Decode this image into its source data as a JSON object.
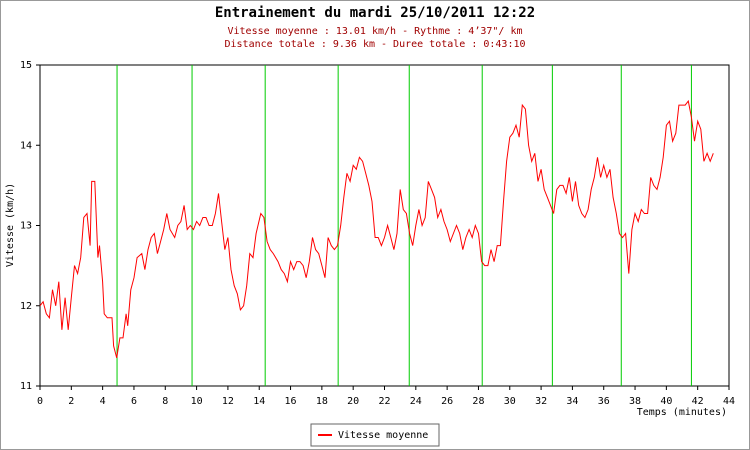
{
  "chart_data": {
    "type": "line",
    "title": "Entrainement du mardi 25/10/2011 12:22",
    "subtitle": [
      "Vitesse moyenne : 13.01 km/h - Rythme : 4’37\"/ km",
      "Distance totale : 9.36 km - Duree totale : 0:43:10"
    ],
    "ylabel": "Vitesse (km/h)",
    "xlabel": "Temps (minutes)",
    "xlim": [
      0,
      44
    ],
    "xticks": [
      0,
      2,
      4,
      6,
      8,
      10,
      12,
      14,
      16,
      18,
      20,
      22,
      24,
      26,
      28,
      30,
      32,
      34,
      36,
      38,
      40,
      42,
      44
    ],
    "ylim": [
      11,
      15
    ],
    "yticks": [
      11,
      12,
      13,
      14,
      15
    ],
    "markers": {
      "color": "#00cc00",
      "x": [
        4.92,
        9.71,
        14.38,
        19.04,
        23.58,
        28.24,
        32.72,
        37.12,
        41.6
      ]
    },
    "x": [
      0,
      0.2,
      0.4,
      0.6,
      0.8,
      1,
      1.2,
      1.4,
      1.6,
      1.8,
      2,
      2.2,
      2.4,
      2.6,
      2.8,
      3,
      3.2,
      3.3,
      3.5,
      3.7,
      3.8,
      4,
      4.1,
      4.3,
      4.6,
      4.7,
      4.9,
      5.1,
      5.3,
      5.5,
      5.6,
      5.8,
      6,
      6.2,
      6.5,
      6.7,
      6.9,
      7.1,
      7.3,
      7.5,
      7.7,
      7.9,
      8.1,
      8.3,
      8.6,
      8.8,
      9,
      9.2,
      9.4,
      9.6,
      9.8,
      10,
      10.2,
      10.4,
      10.6,
      10.8,
      11,
      11.2,
      11.4,
      11.6,
      11.8,
      12,
      12.2,
      12.4,
      12.6,
      12.8,
      13,
      13.2,
      13.4,
      13.6,
      13.8,
      14.1,
      14.3,
      14.5,
      14.7,
      14.9,
      15.2,
      15.4,
      15.6,
      15.8,
      16,
      16.2,
      16.4,
      16.6,
      16.8,
      17,
      17.2,
      17.4,
      17.6,
      17.8,
      18,
      18.2,
      18.4,
      18.6,
      18.8,
      19,
      19.2,
      19.4,
      19.6,
      19.8,
      20,
      20.2,
      20.4,
      20.6,
      20.8,
      21,
      21.2,
      21.4,
      21.6,
      21.8,
      22,
      22.2,
      22.4,
      22.6,
      22.8,
      23,
      23.2,
      23.4,
      23.6,
      23.8,
      24,
      24.2,
      24.4,
      24.6,
      24.8,
      25,
      25.2,
      25.4,
      25.6,
      25.8,
      26,
      26.2,
      26.4,
      26.6,
      26.8,
      27,
      27.2,
      27.4,
      27.6,
      27.8,
      28,
      28.2,
      28.4,
      28.6,
      28.8,
      29,
      29.2,
      29.4,
      29.6,
      29.8,
      30,
      30.2,
      30.4,
      30.6,
      30.8,
      31,
      31.2,
      31.4,
      31.6,
      31.8,
      32,
      32.2,
      32.4,
      32.6,
      32.8,
      33,
      33.2,
      33.4,
      33.6,
      33.8,
      34,
      34.2,
      34.4,
      34.6,
      34.8,
      35,
      35.2,
      35.4,
      35.6,
      35.8,
      36,
      36.2,
      36.4,
      36.6,
      36.8,
      37,
      37.2,
      37.4,
      37.6,
      37.8,
      38,
      38.2,
      38.4,
      38.6,
      38.8,
      39,
      39.2,
      39.4,
      39.6,
      39.8,
      40,
      40.2,
      40.4,
      40.6,
      40.8,
      41,
      41.2,
      41.4,
      41.6,
      41.8,
      42,
      42.2,
      42.4,
      42.6,
      42.8,
      43
    ],
    "series": [
      {
        "name": "Vitesse moyenne",
        "color": "#ff0000",
        "values": [
          12.0,
          12.05,
          11.9,
          11.85,
          12.2,
          12.0,
          12.3,
          11.7,
          12.1,
          11.7,
          12.1,
          12.5,
          12.4,
          12.6,
          13.1,
          13.15,
          12.75,
          13.55,
          13.55,
          12.6,
          12.75,
          12.3,
          11.9,
          11.85,
          11.85,
          11.5,
          11.35,
          11.6,
          11.6,
          11.9,
          11.75,
          12.2,
          12.35,
          12.6,
          12.65,
          12.45,
          12.7,
          12.85,
          12.9,
          12.65,
          12.8,
          12.95,
          13.15,
          12.95,
          12.85,
          13.0,
          13.05,
          13.25,
          12.95,
          13.0,
          12.95,
          13.05,
          13.0,
          13.1,
          13.1,
          13.0,
          13.0,
          13.15,
          13.4,
          13.05,
          12.7,
          12.85,
          12.45,
          12.25,
          12.15,
          11.95,
          12.0,
          12.25,
          12.65,
          12.6,
          12.9,
          13.15,
          13.1,
          12.8,
          12.7,
          12.65,
          12.55,
          12.45,
          12.4,
          12.3,
          12.55,
          12.45,
          12.55,
          12.55,
          12.5,
          12.35,
          12.55,
          12.85,
          12.7,
          12.65,
          12.5,
          12.35,
          12.85,
          12.75,
          12.7,
          12.75,
          13.0,
          13.35,
          13.65,
          13.55,
          13.75,
          13.7,
          13.85,
          13.8,
          13.65,
          13.5,
          13.3,
          12.85,
          12.85,
          12.75,
          12.85,
          13.0,
          12.85,
          12.7,
          12.9,
          13.45,
          13.2,
          13.15,
          12.9,
          12.75,
          13.0,
          13.2,
          13.0,
          13.1,
          13.55,
          13.45,
          13.35,
          13.1,
          13.2,
          13.05,
          12.95,
          12.8,
          12.9,
          13.0,
          12.9,
          12.7,
          12.85,
          12.95,
          12.85,
          13.0,
          12.9,
          12.55,
          12.5,
          12.5,
          12.7,
          12.55,
          12.75,
          12.75,
          13.3,
          13.8,
          14.1,
          14.15,
          14.25,
          14.1,
          14.5,
          14.45,
          14.0,
          13.8,
          13.9,
          13.55,
          13.7,
          13.45,
          13.35,
          13.25,
          13.15,
          13.45,
          13.5,
          13.5,
          13.4,
          13.6,
          13.3,
          13.55,
          13.25,
          13.15,
          13.1,
          13.2,
          13.45,
          13.6,
          13.85,
          13.6,
          13.75,
          13.6,
          13.7,
          13.35,
          13.15,
          12.9,
          12.85,
          12.9,
          12.4,
          12.95,
          13.15,
          13.05,
          13.2,
          13.15,
          13.15,
          13.6,
          13.5,
          13.45,
          13.6,
          13.85,
          14.25,
          14.3,
          14.05,
          14.15,
          14.5,
          14.5,
          14.5,
          14.55,
          14.35,
          14.05,
          14.3,
          14.2,
          13.8,
          13.9,
          13.8,
          13.9
        ]
      }
    ]
  }
}
